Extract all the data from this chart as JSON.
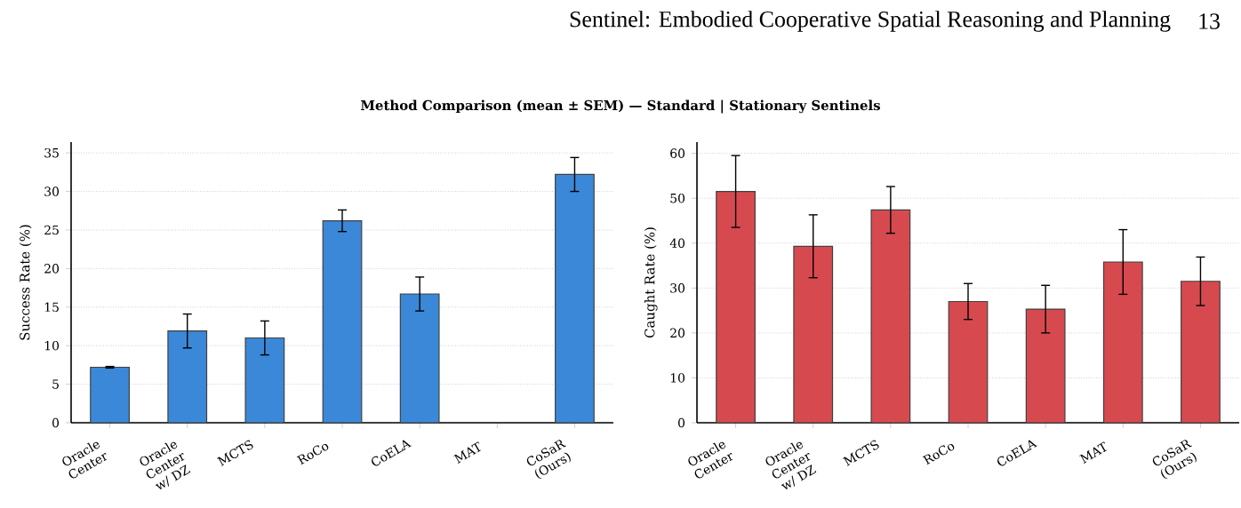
{
  "chart_data": [
    {
      "type": "bar",
      "title": "Method Comparison (mean ± SEM) — Standard | Stationary Sentinels",
      "annotations": [
        "Sentinel: Embodied Cooperative Spatial Reasoning and Planning",
        "13"
      ],
      "categories": [
        "Oracle Center",
        "Oracle Center w/ DZ",
        "MCTS",
        "RoCo",
        "CoELA",
        "MAT",
        "CoSaR (Ours)"
      ],
      "values": [
        7.2,
        11.9,
        11.0,
        26.2,
        16.7,
        0.0,
        32.2
      ],
      "errors": [
        0.1,
        2.2,
        2.2,
        1.4,
        2.2,
        null,
        2.2
      ],
      "color": "#3b88d8",
      "ylabel": "Success Rate (%)",
      "ylim": [
        0,
        36.4
      ],
      "yticks": [
        0,
        5,
        10,
        15,
        20,
        25,
        30,
        35
      ],
      "grid": "y"
    },
    {
      "type": "bar",
      "categories": [
        "Oracle Center",
        "Oracle Center w/ DZ",
        "MCTS",
        "RoCo",
        "CoELA",
        "MAT",
        "CoSaR (Ours)"
      ],
      "values": [
        51.5,
        39.3,
        47.4,
        27.0,
        25.3,
        35.8,
        31.5
      ],
      "errors": [
        8.0,
        7.0,
        5.2,
        4.0,
        5.3,
        7.2,
        5.4
      ],
      "color": "#d64a4f",
      "ylabel": "Caught Rate (%)",
      "ylim": [
        0,
        62.5
      ],
      "yticks": [
        0,
        10,
        20,
        30,
        40,
        50,
        60
      ],
      "grid": "y"
    }
  ]
}
